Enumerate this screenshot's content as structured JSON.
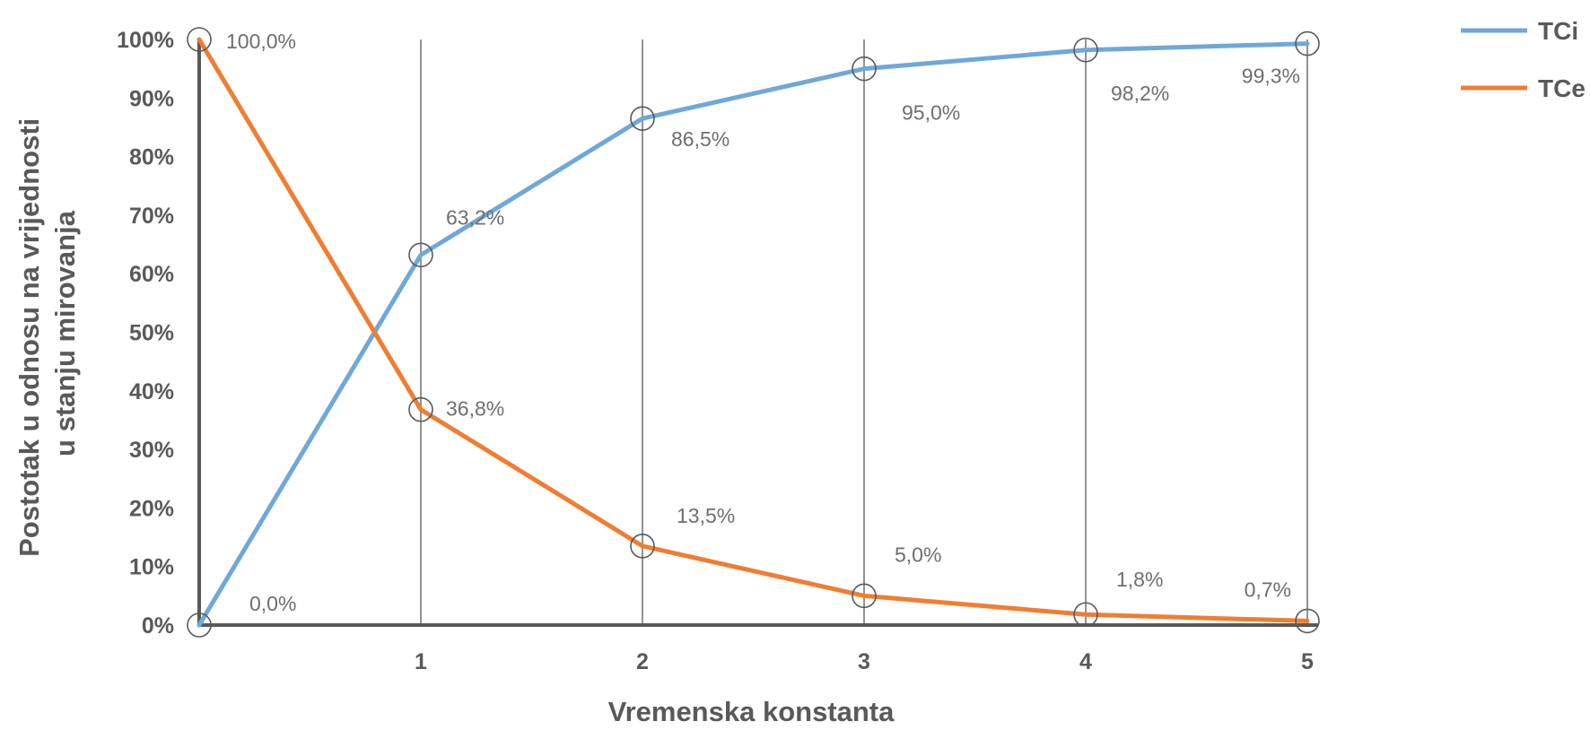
{
  "chart_data": {
    "type": "line",
    "x": [
      0,
      1,
      2,
      3,
      4,
      5
    ],
    "x_tick_labels": [
      "",
      "1",
      "2",
      "3",
      "4",
      "5"
    ],
    "ylim": [
      0,
      100
    ],
    "y_tick_labels": [
      "0%",
      "10%",
      "20%",
      "30%",
      "40%",
      "50%",
      "60%",
      "70%",
      "80%",
      "90%",
      "100%"
    ],
    "xlabel": "Vremenska konstanta",
    "ylabel_lines": [
      "Postotak u odnosu na vrijednosti",
      "u stanju mirovanja"
    ],
    "grid": "vertical lines at each x",
    "legend_position": "top-right",
    "series": [
      {
        "name": "TCi",
        "color": "#6fa8d8",
        "values": [
          0,
          63.2,
          86.5,
          95.0,
          98.2,
          99.3
        ],
        "labels": [
          "0,0%",
          "63,2%",
          "86,5%",
          "95,0%",
          "98,2%",
          "99,3%"
        ]
      },
      {
        "name": "TCe",
        "color": "#ef7d32",
        "values": [
          100,
          36.8,
          13.5,
          5.0,
          1.8,
          0.7
        ],
        "labels": [
          "100,0%",
          "36,8%",
          "13,5%",
          "5,0%",
          "1,8%",
          "0,7%"
        ]
      }
    ]
  }
}
